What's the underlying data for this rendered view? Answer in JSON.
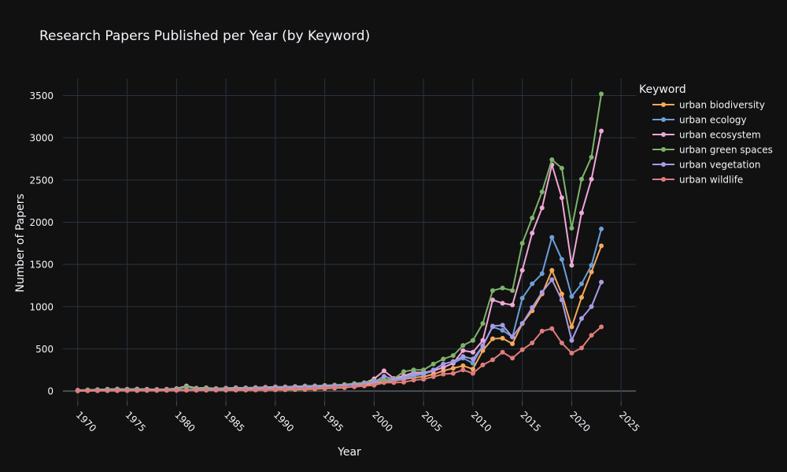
{
  "chart_data": {
    "type": "line",
    "title": "Research Papers Published per Year (by Keyword)",
    "xlabel": "Year",
    "ylabel": "Number of Papers",
    "legend_title": "Keyword",
    "legend_placement": "top-right, outside plot",
    "xlim": [
      1968.5,
      2026.5
    ],
    "ylim": [
      -120,
      3700
    ],
    "x_ticks": [
      1970,
      1975,
      1980,
      1985,
      1990,
      1995,
      2000,
      2005,
      2010,
      2015,
      2020,
      2025
    ],
    "y_ticks": [
      0,
      500,
      1000,
      1500,
      2000,
      2500,
      3000,
      3500
    ],
    "grid": true,
    "x": [
      1970,
      1971,
      1972,
      1973,
      1974,
      1975,
      1976,
      1977,
      1978,
      1979,
      1980,
      1981,
      1982,
      1983,
      1984,
      1985,
      1986,
      1987,
      1988,
      1989,
      1990,
      1991,
      1992,
      1993,
      1994,
      1995,
      1996,
      1997,
      1998,
      1999,
      2000,
      2001,
      2002,
      2003,
      2004,
      2005,
      2006,
      2007,
      2008,
      2009,
      2010,
      2011,
      2012,
      2013,
      2014,
      2015,
      2016,
      2017,
      2018,
      2019,
      2020,
      2021,
      2022,
      2023
    ],
    "series": [
      {
        "name": "urban biodiversity",
        "color": "#F5A95C",
        "values": [
          3,
          4,
          5,
          6,
          6,
          7,
          7,
          8,
          8,
          9,
          9,
          10,
          10,
          10,
          11,
          11,
          12,
          12,
          13,
          14,
          15,
          16,
          18,
          20,
          25,
          30,
          35,
          40,
          55,
          70,
          95,
          110,
          120,
          140,
          160,
          170,
          200,
          240,
          270,
          300,
          260,
          480,
          620,
          625,
          560,
          800,
          950,
          1150,
          1430,
          1150,
          760,
          1110,
          1410,
          1720
        ]
      },
      {
        "name": "urban ecology",
        "color": "#6C9FD8",
        "values": [
          5,
          8,
          10,
          12,
          12,
          12,
          12,
          13,
          13,
          14,
          15,
          16,
          17,
          18,
          19,
          20,
          22,
          24,
          26,
          28,
          32,
          36,
          40,
          45,
          50,
          55,
          60,
          65,
          75,
          90,
          110,
          125,
          130,
          150,
          180,
          200,
          240,
          280,
          330,
          390,
          330,
          540,
          760,
          720,
          640,
          1100,
          1270,
          1390,
          1820,
          1560,
          1120,
          1270,
          1490,
          1920
        ]
      },
      {
        "name": "urban ecosystem",
        "color": "#F0A8D6",
        "values": [
          10,
          14,
          18,
          22,
          25,
          22,
          24,
          22,
          20,
          22,
          30,
          60,
          35,
          40,
          30,
          35,
          40,
          38,
          42,
          45,
          50,
          50,
          55,
          60,
          62,
          65,
          68,
          70,
          80,
          95,
          145,
          240,
          150,
          180,
          220,
          220,
          240,
          280,
          330,
          480,
          460,
          600,
          1080,
          1040,
          1020,
          1430,
          1870,
          2170,
          2680,
          2290,
          1490,
          2110,
          2510,
          3080
        ]
      },
      {
        "name": "urban green spaces",
        "color": "#7EB36A",
        "values": [
          8,
          12,
          15,
          18,
          20,
          18,
          20,
          18,
          16,
          18,
          25,
          50,
          30,
          35,
          28,
          30,
          35,
          35,
          38,
          40,
          45,
          48,
          52,
          58,
          60,
          68,
          72,
          78,
          90,
          100,
          120,
          135,
          145,
          230,
          250,
          250,
          320,
          380,
          420,
          540,
          600,
          800,
          1190,
          1220,
          1190,
          1750,
          2050,
          2360,
          2740,
          2640,
          1930,
          2510,
          2770,
          3520
        ]
      },
      {
        "name": "urban vegetation",
        "color": "#A99BE6",
        "values": [
          4,
          6,
          8,
          9,
          10,
          10,
          10,
          11,
          11,
          12,
          13,
          15,
          16,
          18,
          20,
          22,
          24,
          27,
          30,
          34,
          38,
          42,
          46,
          50,
          54,
          58,
          62,
          68,
          75,
          88,
          105,
          175,
          140,
          160,
          200,
          210,
          250,
          320,
          350,
          410,
          380,
          530,
          770,
          780,
          640,
          800,
          990,
          1170,
          1320,
          1080,
          600,
          860,
          1000,
          1290
        ]
      },
      {
        "name": "urban wildlife",
        "color": "#E07C7C",
        "values": [
          2,
          3,
          4,
          5,
          5,
          6,
          6,
          7,
          7,
          8,
          8,
          9,
          9,
          10,
          11,
          12,
          13,
          14,
          16,
          18,
          20,
          22,
          25,
          28,
          32,
          36,
          40,
          45,
          50,
          60,
          70,
          100,
          100,
          105,
          130,
          140,
          170,
          200,
          210,
          250,
          210,
          310,
          370,
          460,
          390,
          490,
          570,
          710,
          740,
          570,
          450,
          510,
          660,
          760
        ]
      }
    ]
  }
}
